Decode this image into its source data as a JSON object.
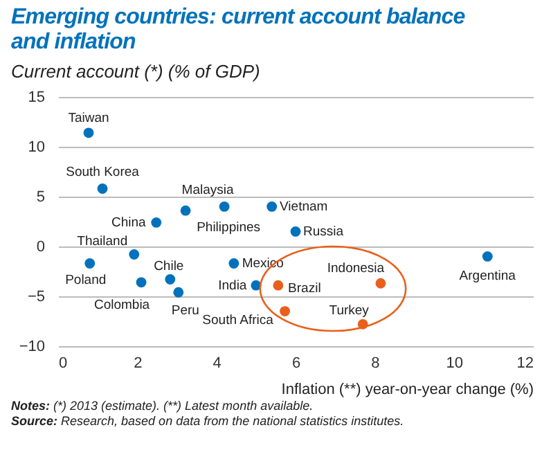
{
  "chart_data": {
    "type": "scatter",
    "title": "Emerging countries: current account balance and inflation",
    "ylabel": "Current account (*) (% of GDP)",
    "xlabel": "Inflation (**) year-on-year change (%)",
    "xlim": [
      0,
      12
    ],
    "xticks": [
      0,
      2,
      4,
      6,
      8,
      10,
      12
    ],
    "ylim": [
      -10,
      15
    ],
    "yticks": [
      -10,
      -5,
      0,
      5,
      10,
      15
    ],
    "grid": "y",
    "marker": "circle",
    "series": [
      {
        "color": "#0072bc",
        "x": [
          0.77,
          1.12,
          3.22,
          4.2,
          5.4,
          2.48,
          6.0,
          1.92,
          0.8,
          2.1,
          2.83,
          3.04,
          4.44,
          5.0,
          10.85
        ],
        "values": [
          11.4,
          5.8,
          3.6,
          4.0,
          4.0,
          2.4,
          1.5,
          -0.8,
          -1.7,
          -3.6,
          -3.3,
          -4.6,
          -1.7,
          -3.9,
          -1.0
        ]
      },
      {
        "color": "#e8601c",
        "x": [
          5.56,
          5.73,
          8.15,
          7.7
        ],
        "values": [
          -3.9,
          -6.5,
          -3.7,
          -7.8
        ]
      }
    ],
    "annotations": [
      {
        "text": "Taiwan",
        "x": 0.77,
        "y": 11.4
      },
      {
        "text": "South Korea",
        "x": 1.12,
        "y": 5.8
      },
      {
        "text": "Malaysia",
        "x": 3.22,
        "y": 3.6
      },
      {
        "text": "Philippines",
        "x": 4.2,
        "y": 4.0
      },
      {
        "text": "Vietnam",
        "x": 5.4,
        "y": 4.0
      },
      {
        "text": "China",
        "x": 2.48,
        "y": 2.4
      },
      {
        "text": "Russia",
        "x": 6.0,
        "y": 1.5
      },
      {
        "text": "Thailand",
        "x": 1.92,
        "y": -0.8
      },
      {
        "text": "Poland",
        "x": 0.8,
        "y": -1.7
      },
      {
        "text": "Colombia",
        "x": 2.1,
        "y": -3.6
      },
      {
        "text": "Chile",
        "x": 2.83,
        "y": -3.3
      },
      {
        "text": "Peru",
        "x": 3.04,
        "y": -4.6
      },
      {
        "text": "Mexico",
        "x": 4.44,
        "y": -1.7
      },
      {
        "text": "India",
        "x": 5.0,
        "y": -3.9
      },
      {
        "text": "Argentina",
        "x": 10.85,
        "y": -1.0
      },
      {
        "text": "Brazil",
        "x": 5.56,
        "y": -3.9
      },
      {
        "text": "South Africa",
        "x": 5.73,
        "y": -6.5
      },
      {
        "text": "Indonesia",
        "x": 8.15,
        "y": -3.7
      },
      {
        "text": "Turkey",
        "x": 7.7,
        "y": -7.8
      },
      "Notes: (*) 2013 (estimate). (**) Latest month available.",
      "Source: Research, based on data from the national statistics institutes."
    ]
  }
}
